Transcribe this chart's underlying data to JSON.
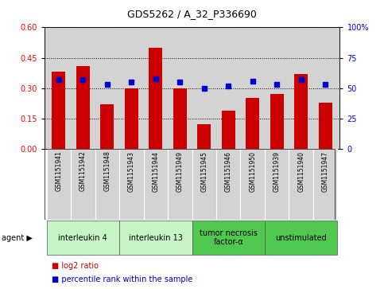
{
  "title": "GDS5262 / A_32_P336690",
  "samples": [
    "GSM1151941",
    "GSM1151942",
    "GSM1151948",
    "GSM1151943",
    "GSM1151944",
    "GSM1151949",
    "GSM1151945",
    "GSM1151946",
    "GSM1151950",
    "GSM1151939",
    "GSM1151940",
    "GSM1151947"
  ],
  "log2_ratio": [
    0.38,
    0.41,
    0.22,
    0.3,
    0.5,
    0.3,
    0.12,
    0.19,
    0.25,
    0.27,
    0.37,
    0.23
  ],
  "percentile_rank": [
    57,
    57,
    53,
    55,
    58,
    55,
    50,
    52,
    56,
    53,
    57,
    53
  ],
  "agent_spans": [
    {
      "label": "interleukin 4",
      "start": 0,
      "end": 2,
      "color": "#c8f5c8"
    },
    {
      "label": "interleukin 13",
      "start": 3,
      "end": 5,
      "color": "#c8f5c8"
    },
    {
      "label": "tumor necrosis\nfactor-α",
      "start": 6,
      "end": 8,
      "color": "#50c850"
    },
    {
      "label": "unstimulated",
      "start": 9,
      "end": 11,
      "color": "#50c850"
    }
  ],
  "ylim_left": [
    0,
    0.6
  ],
  "ylim_right": [
    0,
    100
  ],
  "yticks_left": [
    0,
    0.15,
    0.3,
    0.45,
    0.6
  ],
  "yticks_right": [
    0,
    25,
    50,
    75,
    100
  ],
  "right_tick_labels": [
    "0",
    "25",
    "50",
    "75",
    "100%"
  ],
  "bar_color": "#cc0000",
  "dot_color": "#0000cc",
  "bar_width": 0.55,
  "bg_color": "#d3d3d3",
  "sample_box_color": "#d3d3d3",
  "legend_labels": [
    "log2 ratio",
    "percentile rank within the sample"
  ],
  "legend_colors": [
    "#cc0000",
    "#0000cc"
  ],
  "title_fontsize": 9,
  "tick_fontsize": 7,
  "sample_fontsize": 5.5,
  "agent_fontsize": 7,
  "legend_fontsize": 7
}
